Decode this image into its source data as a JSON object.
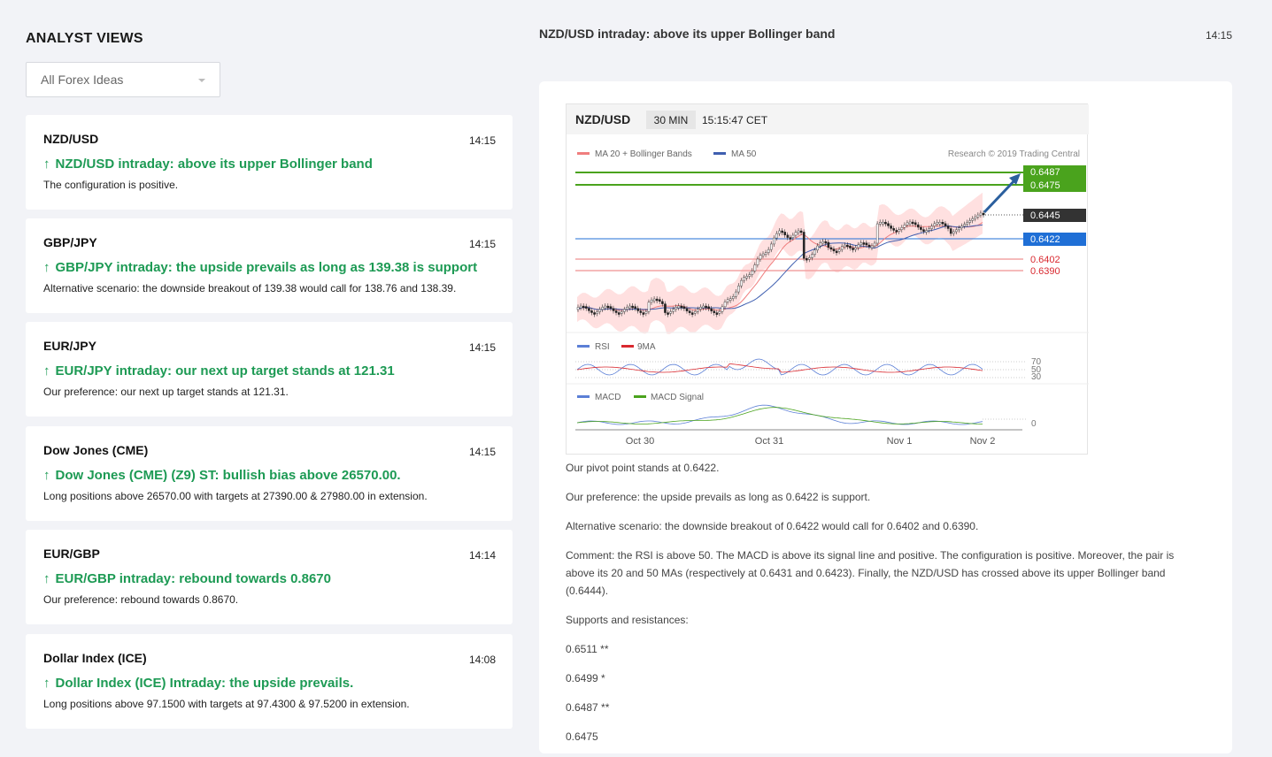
{
  "sidebar": {
    "title": "ANALYST VIEWS",
    "filter": "All Forex Ideas",
    "ideas": [
      {
        "symbol": "NZD/USD",
        "time": "14:15",
        "headline": "NZD/USD intraday: above its upper Bollinger band",
        "desc": "The configuration is positive."
      },
      {
        "symbol": "GBP/JPY",
        "time": "14:15",
        "headline": "GBP/JPY intraday: the upside prevails as long as 139.38 is support",
        "desc": "Alternative scenario: the downside breakout of 139.38 would call for 138.76 and 138.39."
      },
      {
        "symbol": "EUR/JPY",
        "time": "14:15",
        "headline": "EUR/JPY intraday: our next up target stands at 121.31",
        "desc": "Our preference: our next up target stands at 121.31."
      },
      {
        "symbol": "Dow Jones (CME)",
        "time": "14:15",
        "headline": "Dow Jones (CME) (Z9) ST: bullish bias above 26570.00.",
        "desc": "Long positions above 26570.00 with targets at 27390.00 & 27980.00 in extension."
      },
      {
        "symbol": "EUR/GBP",
        "time": "14:14",
        "headline": "EUR/GBP intraday: rebound towards 0.8670",
        "desc": "Our preference: rebound towards 0.8670."
      },
      {
        "symbol": "Dollar Index (ICE)",
        "time": "14:08",
        "headline": "Dollar Index (ICE) Intraday: the upside prevails.",
        "desc": "Long positions above 97.1500 with targets at 97.4300 & 97.5200 in extension."
      }
    ]
  },
  "article": {
    "title": "NZD/USD intraday: above its upper Bollinger band",
    "time": "14:15",
    "paragraphs": [
      "Our pivot point stands at 0.6422.",
      "Our preference: the upside prevails as long as 0.6422 is support.",
      "Alternative scenario: the downside breakout of 0.6422 would call for 0.6402 and 0.6390.",
      "Comment: the RSI is above 50. The MACD is above its signal line and positive. The configuration is positive. Moreover, the pair is above its 20 and 50 MAs (respectively at 0.6431 and 0.6423). Finally, the NZD/USD has crossed above its upper Bollinger band (0.6444).",
      "Supports and resistances:",
      "0.6511 **",
      "0.6499 *",
      "0.6487 **",
      "0.6475"
    ]
  },
  "chart_data": {
    "type": "line",
    "symbol": "NZD/USD",
    "interval": "30 MIN",
    "clock": "15:15:47 CET",
    "legend_main": [
      "MA 20 + Bollinger Bands",
      "MA 50"
    ],
    "credit": "Research © 2019 Trading Central",
    "legend_rsi": [
      "RSI",
      "9MA"
    ],
    "legend_macd": [
      "MACD",
      "MACD Signal"
    ],
    "x_ticks": [
      "Oct 30",
      "Oct 31",
      "Nov 1",
      "Nov 2"
    ],
    "levels": {
      "resistance": [
        "0.6487",
        "0.6475"
      ],
      "current": "0.6445",
      "pivot": "0.6422",
      "supports": [
        "0.6402",
        "0.6390"
      ]
    },
    "rsi_ticks": [
      "70",
      "50",
      "30"
    ],
    "macd_tick": "0",
    "colors": {
      "resistance": "#4aa31d",
      "pivot": "#1f6fd6",
      "support": "#d9282f",
      "bollinger": "#ffd6d6",
      "ma50": "#3f5fb0",
      "ma20": "#f07e7e",
      "arrow": "#2b5f9e",
      "current": "#333333"
    }
  }
}
